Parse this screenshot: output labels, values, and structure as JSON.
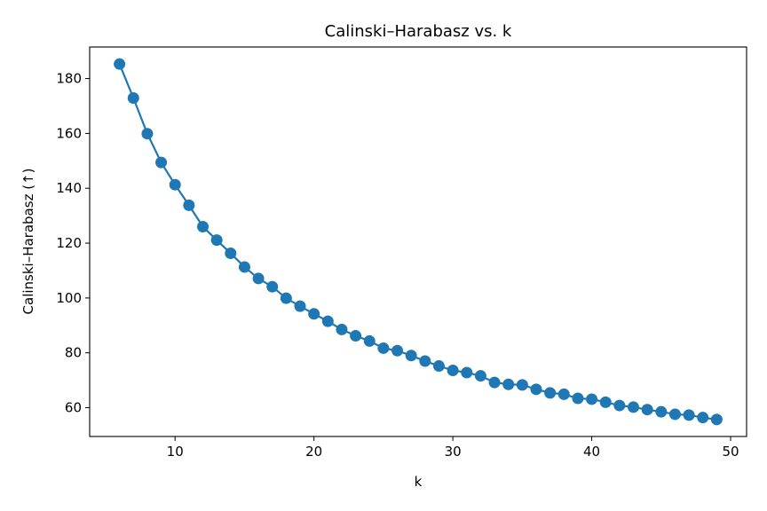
{
  "chart_data": {
    "type": "line",
    "title": "Calinski–Harabasz vs. k",
    "xlabel": "k",
    "ylabel": "Calinski–Harabasz (↑)",
    "xlim": [
      3.85,
      51.15
    ],
    "ylim": [
      49.5,
      191.5
    ],
    "xticks": [
      10,
      20,
      30,
      40,
      50
    ],
    "yticks": [
      60,
      80,
      100,
      120,
      140,
      160,
      180
    ],
    "grid": false,
    "markers": true,
    "series": [
      {
        "color": "#1f77b4",
        "x": [
          6,
          7,
          8,
          9,
          10,
          11,
          12,
          13,
          14,
          15,
          16,
          17,
          18,
          19,
          20,
          21,
          22,
          23,
          24,
          25,
          26,
          27,
          28,
          29,
          30,
          31,
          32,
          33,
          34,
          35,
          36,
          37,
          38,
          39,
          40,
          41,
          42,
          43,
          44,
          45,
          46,
          47,
          48,
          49
        ],
        "y": [
          185.3,
          172.9,
          159.9,
          149.4,
          141.3,
          133.8,
          126.0,
          121.1,
          116.3,
          111.3,
          107.1,
          104.1,
          99.9,
          97.0,
          94.2,
          91.5,
          88.5,
          86.2,
          84.3,
          81.7,
          80.8,
          79.0,
          77.0,
          75.2,
          73.6,
          72.8,
          71.6,
          69.2,
          68.5,
          68.3,
          66.7,
          65.4,
          64.9,
          63.4,
          63.1,
          62.0,
          60.8,
          60.2,
          59.3,
          58.5,
          57.6,
          57.3,
          56.4,
          55.7
        ]
      }
    ]
  }
}
